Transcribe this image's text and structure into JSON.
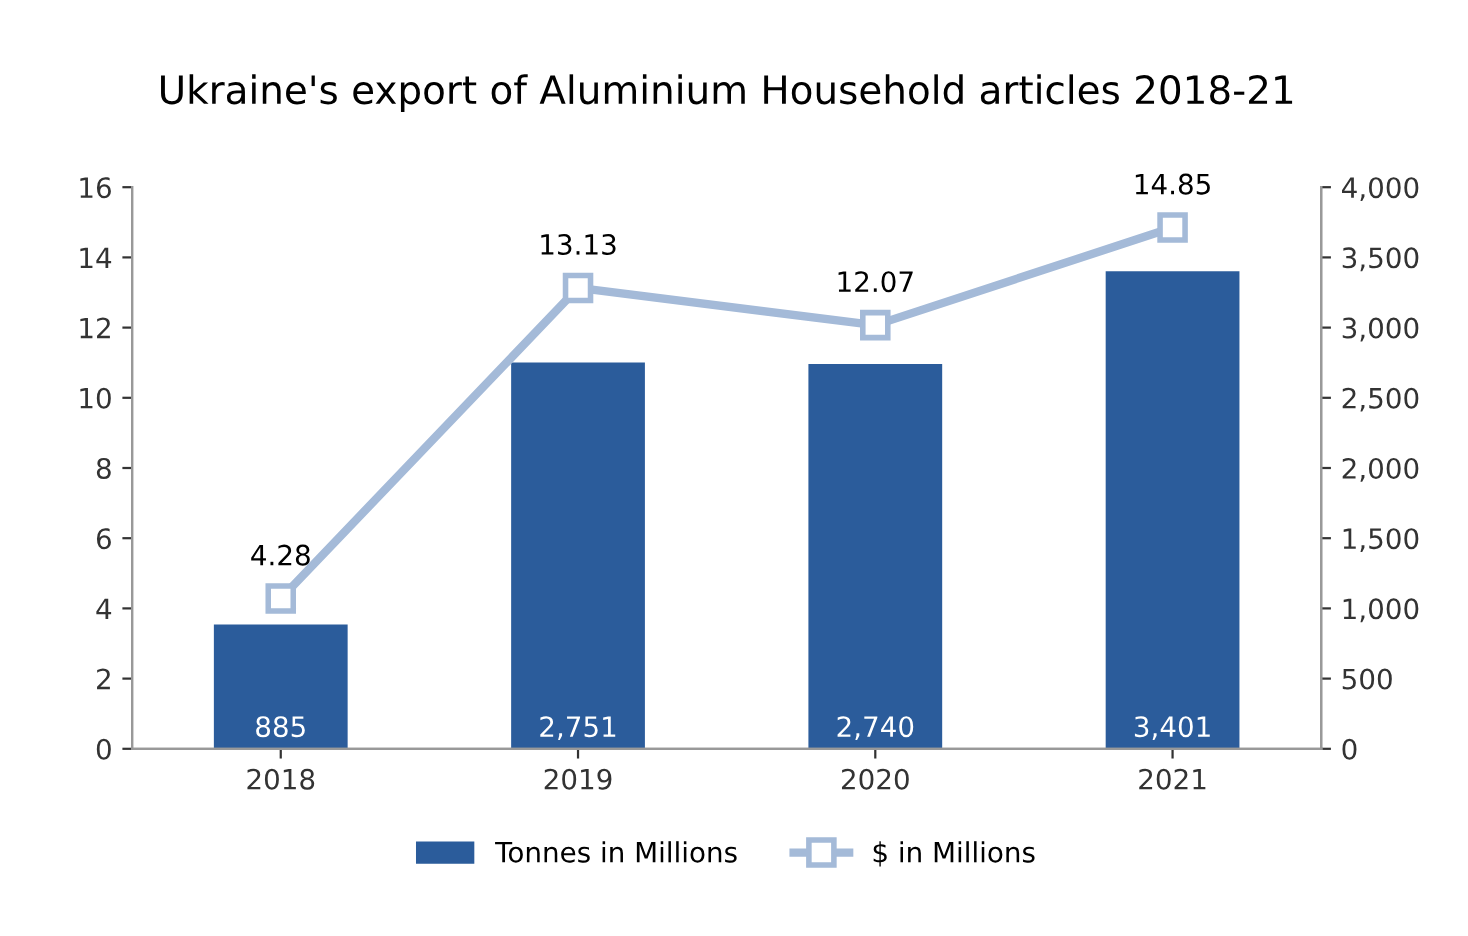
{
  "chart_data": {
    "type": "bar",
    "title": "Ukraine's export of Aluminium Household articles 2018-21",
    "categories": [
      "2018",
      "2019",
      "2020",
      "2021"
    ],
    "series": [
      {
        "name": "Tonnes in Millions",
        "axis": "y2",
        "color": "#2b5c9b",
        "values": [
          885,
          2751,
          2740,
          3401
        ],
        "value_labels": [
          "885",
          "2,751",
          "2,740",
          "3,401"
        ]
      },
      {
        "name": "$ in Millions",
        "type": "line",
        "axis": "y",
        "color": "#a4bad8",
        "marker": "square",
        "values": [
          4.28,
          13.13,
          12.07,
          14.85
        ],
        "value_labels": [
          "4.28",
          "13.13",
          "12.07",
          "14.85"
        ]
      }
    ],
    "ylim": [
      0,
      16
    ],
    "yticks": [
      0,
      2,
      4,
      6,
      8,
      10,
      12,
      14,
      16
    ],
    "y2lim": [
      0,
      4000
    ],
    "y2ticks": [
      {
        "value": 0,
        "label": "0"
      },
      {
        "value": 500,
        "label": "500"
      },
      {
        "value": 1000,
        "label": "1,000"
      },
      {
        "value": 1500,
        "label": "1,500"
      },
      {
        "value": 2000,
        "label": "2,000"
      },
      {
        "value": 2500,
        "label": "2,500"
      },
      {
        "value": 3000,
        "label": "3,000"
      },
      {
        "value": 3500,
        "label": "3,500"
      },
      {
        "value": 4000,
        "label": "4,000"
      }
    ],
    "legend": "bottom",
    "grid": false
  }
}
